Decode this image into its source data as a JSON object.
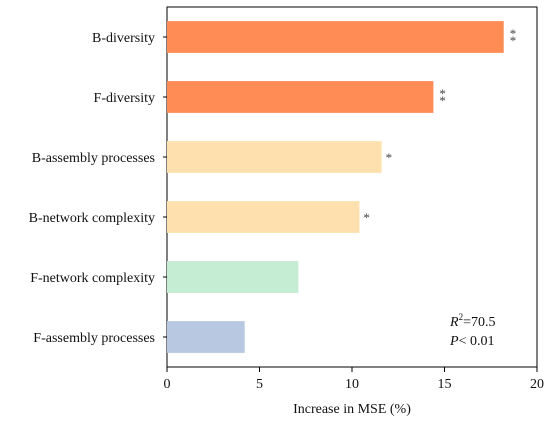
{
  "chart_data": {
    "type": "bar",
    "orientation": "horizontal",
    "categories": [
      "B-diversity",
      "F-diversity",
      "B-assembly processes",
      "B-network complexity",
      "F-network complexity",
      "F-assembly processes"
    ],
    "values": [
      18.2,
      14.4,
      11.6,
      10.4,
      7.1,
      4.2
    ],
    "significance": [
      "**",
      "**",
      "*",
      "*",
      "",
      ""
    ],
    "colors": [
      "#FF8C55",
      "#FF8C55",
      "#FDE0AE",
      "#FDE0AE",
      "#C4EDD3",
      "#B8C8E0"
    ],
    "xlabel": "Increase in MSE (%)",
    "xlim": [
      0,
      20
    ],
    "xticks": [
      0,
      5,
      10,
      15,
      20
    ],
    "grid": false,
    "annotation": {
      "r2_symbol": "R",
      "r2_sup": "2",
      "r2_value": "=70.5",
      "p_symbol": "P",
      "p_value": "< 0.01"
    }
  }
}
